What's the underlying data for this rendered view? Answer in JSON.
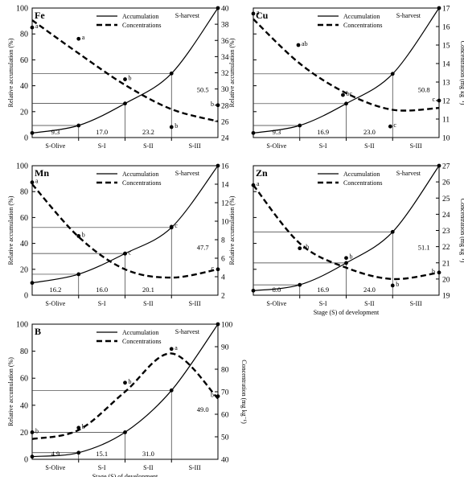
{
  "figure": {
    "legend": {
      "accumulation": "Accumulation",
      "concentrations": "Concentrations"
    },
    "harvest_label": "S-harvest",
    "stages": [
      "S-Olive",
      "S-I",
      "S-II",
      "S-III"
    ],
    "ylabel_left": "Relative accumulation (%)",
    "ylabel_right": "Concentration (mg kg⁻¹)",
    "xlabel": "Stage (S) of development"
  },
  "chart_data": [
    {
      "type": "line",
      "title": "Fe",
      "ylim_left": [
        0,
        100
      ],
      "yticks_left": [
        0,
        20,
        40,
        60,
        80,
        100
      ],
      "ylim_right": [
        24,
        40
      ],
      "yticks_right": [
        24,
        26,
        28,
        30,
        32,
        34,
        36,
        38,
        40
      ],
      "ylabel_right": "",
      "xlabel": "",
      "accumulation": {
        "x": [
          0,
          1,
          2,
          3,
          4
        ],
        "y": [
          3.5,
          9.3,
          26.3,
          49.5,
          100
        ]
      },
      "concentration_curve": {
        "x": [
          0,
          1,
          2,
          3,
          4
        ],
        "y": [
          38.5,
          34.4,
          30.5,
          27.5,
          26.0
        ]
      },
      "concentration_points": {
        "x": [
          0,
          1,
          2,
          3,
          4
        ],
        "y": [
          37.6,
          36.2,
          31.2,
          25.3,
          28.0
        ],
        "letters": [
          "a",
          "a",
          "b",
          "b",
          "b"
        ]
      },
      "increments": [
        "9.3",
        "17.0",
        "23.2",
        "50.5"
      ]
    },
    {
      "type": "line",
      "title": "Cu",
      "ylim_left": [
        0,
        100
      ],
      "yticks_left": [],
      "ylim_right": [
        10,
        17
      ],
      "yticks_right": [
        10,
        11,
        12,
        13,
        14,
        15,
        16,
        17
      ],
      "ylabel_right": "Concentration (mg kg⁻¹)",
      "xlabel": "",
      "accumulation": {
        "x": [
          0,
          1,
          2,
          3,
          4
        ],
        "y": [
          3.5,
          9.3,
          26.2,
          49.2,
          100
        ]
      },
      "concentration_curve": {
        "x": [
          0,
          1,
          2,
          3,
          4
        ],
        "y": [
          16.4,
          14.0,
          12.4,
          11.5,
          11.6
        ]
      },
      "concentration_points": {
        "x": [
          0,
          0.97,
          1.93,
          2.95,
          4
        ],
        "y": [
          16.7,
          15.0,
          12.3,
          10.6,
          12.0
        ],
        "letters": [
          "a",
          "ab",
          "bc",
          "c",
          "c"
        ]
      },
      "increments": [
        "9.3",
        "16.9",
        "23.0",
        "50.8"
      ]
    },
    {
      "type": "line",
      "title": "Mn",
      "ylim_left": [
        0,
        100
      ],
      "yticks_left": [
        0,
        20,
        40,
        60,
        80,
        100
      ],
      "ylim_right": [
        2,
        16
      ],
      "yticks_right": [
        2,
        4,
        6,
        8,
        10,
        12,
        14,
        16
      ],
      "ylabel_right": "",
      "xlabel": "",
      "accumulation": {
        "x": [
          0,
          1,
          2,
          3,
          4
        ],
        "y": [
          9.5,
          16.2,
          32.2,
          52.3,
          100
        ]
      },
      "concentration_curve": {
        "x": [
          0,
          1,
          2,
          3,
          4
        ],
        "y": [
          14.0,
          8.3,
          4.8,
          3.9,
          4.8
        ]
      },
      "concentration_points": {
        "x": [
          0,
          1,
          2,
          3,
          4
        ],
        "y": [
          14.2,
          8.4,
          6.5,
          9.4,
          4.8
        ],
        "letters": [
          "a",
          "b",
          "c",
          "c",
          "c"
        ]
      },
      "increments": [
        "16.2",
        "16.0",
        "20.1",
        "47.7"
      ]
    },
    {
      "type": "line",
      "title": "Zn",
      "ylim_left": [
        0,
        100
      ],
      "yticks_left": [],
      "ylim_right": [
        19,
        27
      ],
      "yticks_right": [
        19,
        20,
        21,
        22,
        23,
        24,
        25,
        26,
        27
      ],
      "ylabel_right": "Concentration (mg kg⁻¹)",
      "xlabel": "Stage (S) of development",
      "accumulation": {
        "x": [
          0,
          1,
          2,
          3,
          4
        ],
        "y": [
          3.5,
          8.0,
          24.9,
          48.9,
          100
        ]
      },
      "concentration_curve": {
        "x": [
          0,
          1,
          2,
          3,
          4
        ],
        "y": [
          25.8,
          22.2,
          20.7,
          20.0,
          20.4
        ]
      },
      "concentration_points": {
        "x": [
          0,
          1,
          2,
          3,
          4
        ],
        "y": [
          25.8,
          21.9,
          21.3,
          19.6,
          20.4
        ],
        "letters": [
          "a",
          "ab",
          "b",
          "b",
          "b"
        ]
      },
      "increments": [
        "8.0",
        "16.9",
        "24.0",
        "51.1"
      ]
    },
    {
      "type": "line",
      "title": "B",
      "ylim_left": [
        0,
        100
      ],
      "yticks_left": [
        0,
        20,
        40,
        60,
        80,
        100
      ],
      "ylim_right": [
        40,
        100
      ],
      "yticks_right": [
        40,
        50,
        60,
        70,
        80,
        90,
        100
      ],
      "ylabel_right": "Concentration (mg kg⁻¹)",
      "xlabel": "Stage (S) of development",
      "accumulation": {
        "x": [
          0,
          1,
          2,
          3,
          4
        ],
        "y": [
          2.0,
          4.9,
          20.0,
          51.0,
          100
        ]
      },
      "concentration_curve": {
        "x": [
          0,
          1,
          2,
          3,
          4
        ],
        "y": [
          49.0,
          53.0,
          70.0,
          87.0,
          67.0
        ]
      },
      "concentration_points": {
        "x": [
          0,
          1,
          2,
          3,
          4
        ],
        "y": [
          52.0,
          54.0,
          74.0,
          89.0,
          68.0
        ],
        "letters": [
          "b",
          "b",
          "b",
          "a",
          "b"
        ]
      },
      "increments": [
        "4.9",
        "15.1",
        "31.0",
        "49.0"
      ]
    }
  ]
}
